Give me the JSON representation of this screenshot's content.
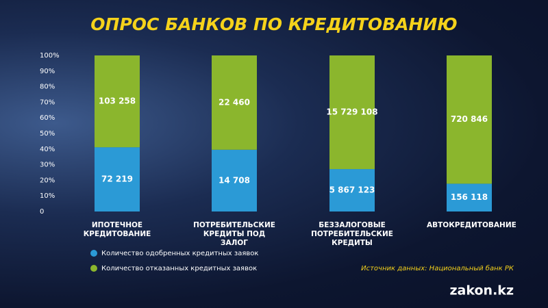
{
  "chart_data": {
    "type": "stacked_percent",
    "title": "ОПРОС БАНКОВ ПО КРЕДИТОВАНИЮ",
    "categories": [
      "ИПОТЕЧНОЕ КРЕДИТОВАНИЕ",
      "ПОТРЕБИТЕЛЬСКИЕ КРЕДИТЫ ПОД ЗАЛОГ",
      "БЕЗЗАЛОГОВЫЕ ПОТРЕБИТЕЛЬСКИЕ КРЕДИТЫ",
      "АВТОКРЕДИТОВАНИЕ"
    ],
    "series": [
      {
        "name": "Количество одобренных кредитных заявок",
        "color": "#2b9ad6",
        "values": [
          72219,
          14708,
          5867123,
          156118
        ],
        "value_labels": [
          "72 219",
          "14 708",
          "5 867 123",
          "156 118"
        ]
      },
      {
        "name": "Количество отказанных кредитных заявок",
        "color": "#8bb62d",
        "values": [
          103258,
          22460,
          15729108,
          720846
        ],
        "value_labels": [
          "103 258",
          "22 460",
          "15 729 108",
          "720 846"
        ]
      }
    ],
    "ylim": [
      0,
      100
    ],
    "yticks": [
      0,
      {
        "value": 10,
        "label": "10%"
      },
      {
        "value": 20,
        "label": "20%"
      },
      {
        "value": 30,
        "label": "30%"
      },
      {
        "value": 40,
        "label": "40%"
      },
      {
        "value": 50,
        "label": "50%"
      },
      {
        "value": 60,
        "label": "60%"
      },
      {
        "value": 70,
        "label": "70%"
      },
      {
        "value": 80,
        "label": "80%"
      },
      {
        "value": 90,
        "label": "90%"
      },
      {
        "value": 100,
        "label": "100%"
      }
    ],
    "source": "Источник данных: Национальный банк РК",
    "logo": "zakon.kz"
  }
}
